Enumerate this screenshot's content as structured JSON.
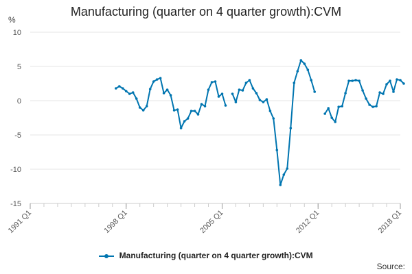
{
  "title": "Manufacturing (quarter on 4 quarter growth):CVM",
  "source_label": "Source:",
  "chart_data": {
    "type": "line",
    "title": "Manufacturing (quarter on 4 quarter growth):CVM",
    "ylabel": "%",
    "ylim": [
      -15,
      10
    ],
    "yticks": [
      10,
      5,
      0,
      -5,
      -10,
      -15
    ],
    "xlim": [
      "1991 Q1",
      "2018 Q1"
    ],
    "xticks": [
      "1991 Q1",
      "1998 Q1",
      "2005 Q1",
      "2012 Q1",
      "2018 Q1"
    ],
    "grid": "horizontal",
    "legend_position": "bottom",
    "colors": {
      "series": "#0075b0",
      "grid": "#e6e6e6",
      "axis": "#cccccc"
    },
    "series": [
      {
        "name": "Manufacturing (quarter on 4 quarter growth):CVM",
        "start": "1997 Q2",
        "values": [
          1.8,
          2.1,
          1.8,
          1.4,
          1.0,
          1.2,
          0.3,
          -1.0,
          -1.4,
          -0.8,
          1.7,
          2.8,
          3.1,
          3.3,
          1.1,
          1.6,
          0.8,
          -1.4,
          -1.3,
          -4.0,
          -3.0,
          -2.6,
          -1.5,
          -1.5,
          -2.0,
          -0.5,
          -0.8,
          1.6,
          2.7,
          2.8,
          0.6,
          1.0,
          -0.7,
          null,
          1.0,
          -0.2,
          1.6,
          1.5,
          2.6,
          3.0,
          1.8,
          1.1,
          0.1,
          -0.2,
          0.2,
          -1.5,
          -2.6,
          -7.2,
          -12.3,
          -10.8,
          -9.9,
          -4.0,
          2.6,
          4.3,
          5.9,
          5.4,
          4.5,
          3.0,
          1.3,
          null,
          null,
          -1.9,
          -1.1,
          -2.5,
          -3.1,
          -0.9,
          -0.8,
          1.1,
          2.9,
          2.9,
          3.0,
          2.9,
          1.5,
          0.3,
          -0.6,
          -0.9,
          -0.8,
          1.2,
          1.0,
          2.4,
          2.9,
          1.3,
          3.1,
          3.0,
          2.5
        ]
      }
    ]
  }
}
